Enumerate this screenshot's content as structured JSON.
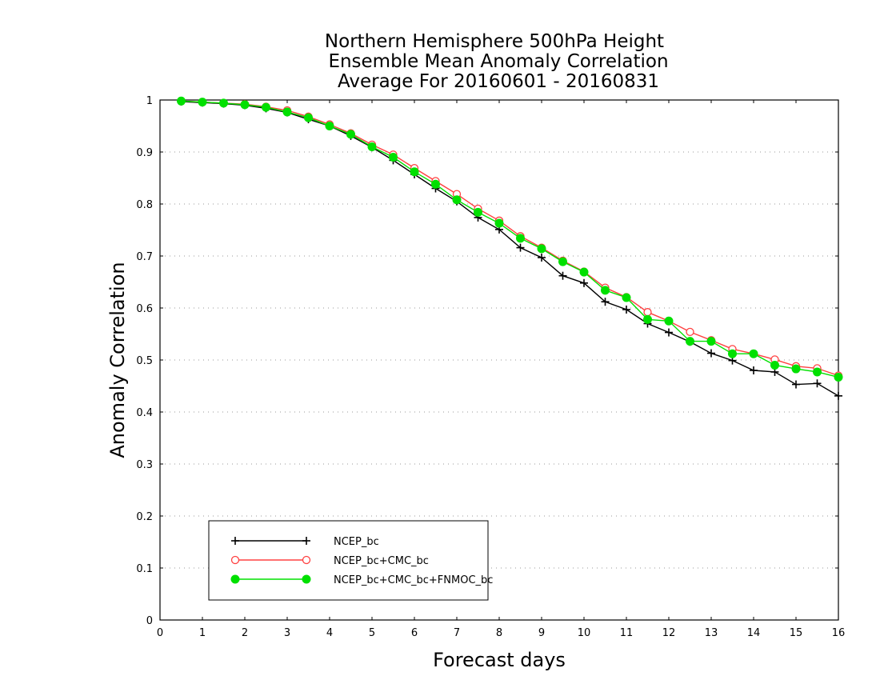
{
  "chart_data": {
    "type": "line",
    "title": [
      "Northern Hemisphere 500hPa Height",
      "Ensemble Mean Anomaly Correlation",
      "Average For 20160601 - 20160831"
    ],
    "xlabel": "Forecast days",
    "ylabel": "Anomaly Correlation",
    "xlim": [
      0,
      16
    ],
    "ylim": [
      0,
      1
    ],
    "x_ticks": [
      "0",
      "1",
      "2",
      "3",
      "4",
      "5",
      "6",
      "7",
      "8",
      "9",
      "10",
      "11",
      "12",
      "13",
      "14",
      "15",
      "16"
    ],
    "y_ticks": [
      "0",
      "0.1",
      "0.2",
      "0.3",
      "0.4",
      "0.5",
      "0.6",
      "0.7",
      "0.8",
      "0.9",
      "1"
    ],
    "grid": "horizontal dotted",
    "legend_position": "bottom-left",
    "x": [
      0.5,
      1,
      1.5,
      2,
      2.5,
      3,
      3.5,
      4,
      4.5,
      5,
      5.5,
      6,
      6.5,
      7,
      7.5,
      8,
      8.5,
      9,
      9.5,
      10,
      10.5,
      11,
      11.5,
      12,
      12.5,
      13,
      13.5,
      14,
      14.5,
      15,
      15.5,
      16
    ],
    "series": [
      {
        "name": "NCEP_bc",
        "color": "#000000",
        "marker": "plus",
        "values": [
          0.997,
          0.995,
          0.993,
          0.99,
          0.984,
          0.976,
          0.963,
          0.95,
          0.931,
          0.909,
          0.884,
          0.857,
          0.83,
          0.805,
          0.774,
          0.751,
          0.716,
          0.697,
          0.662,
          0.648,
          0.612,
          0.597,
          0.57,
          0.553,
          0.535,
          0.513,
          0.499,
          0.48,
          0.477,
          0.453,
          0.455,
          0.431
        ]
      },
      {
        "name": "NCEP_bc+CMC_bc",
        "color": "#ff4040",
        "marker": "open-circle",
        "values": [
          0.998,
          0.996,
          0.994,
          0.992,
          0.987,
          0.98,
          0.968,
          0.953,
          0.936,
          0.914,
          0.895,
          0.869,
          0.844,
          0.819,
          0.791,
          0.768,
          0.738,
          0.716,
          0.691,
          0.67,
          0.639,
          0.621,
          0.592,
          0.575,
          0.554,
          0.538,
          0.521,
          0.512,
          0.501,
          0.488,
          0.484,
          0.47
        ]
      },
      {
        "name": "NCEP_bc+CMC_bc+FNMOC_bc",
        "color": "#00e000",
        "marker": "filled-circle",
        "values": [
          0.998,
          0.996,
          0.994,
          0.991,
          0.986,
          0.977,
          0.966,
          0.95,
          0.934,
          0.91,
          0.89,
          0.862,
          0.838,
          0.808,
          0.784,
          0.763,
          0.734,
          0.714,
          0.689,
          0.669,
          0.634,
          0.62,
          0.578,
          0.575,
          0.536,
          0.536,
          0.512,
          0.512,
          0.49,
          0.483,
          0.477,
          0.467
        ]
      }
    ]
  }
}
